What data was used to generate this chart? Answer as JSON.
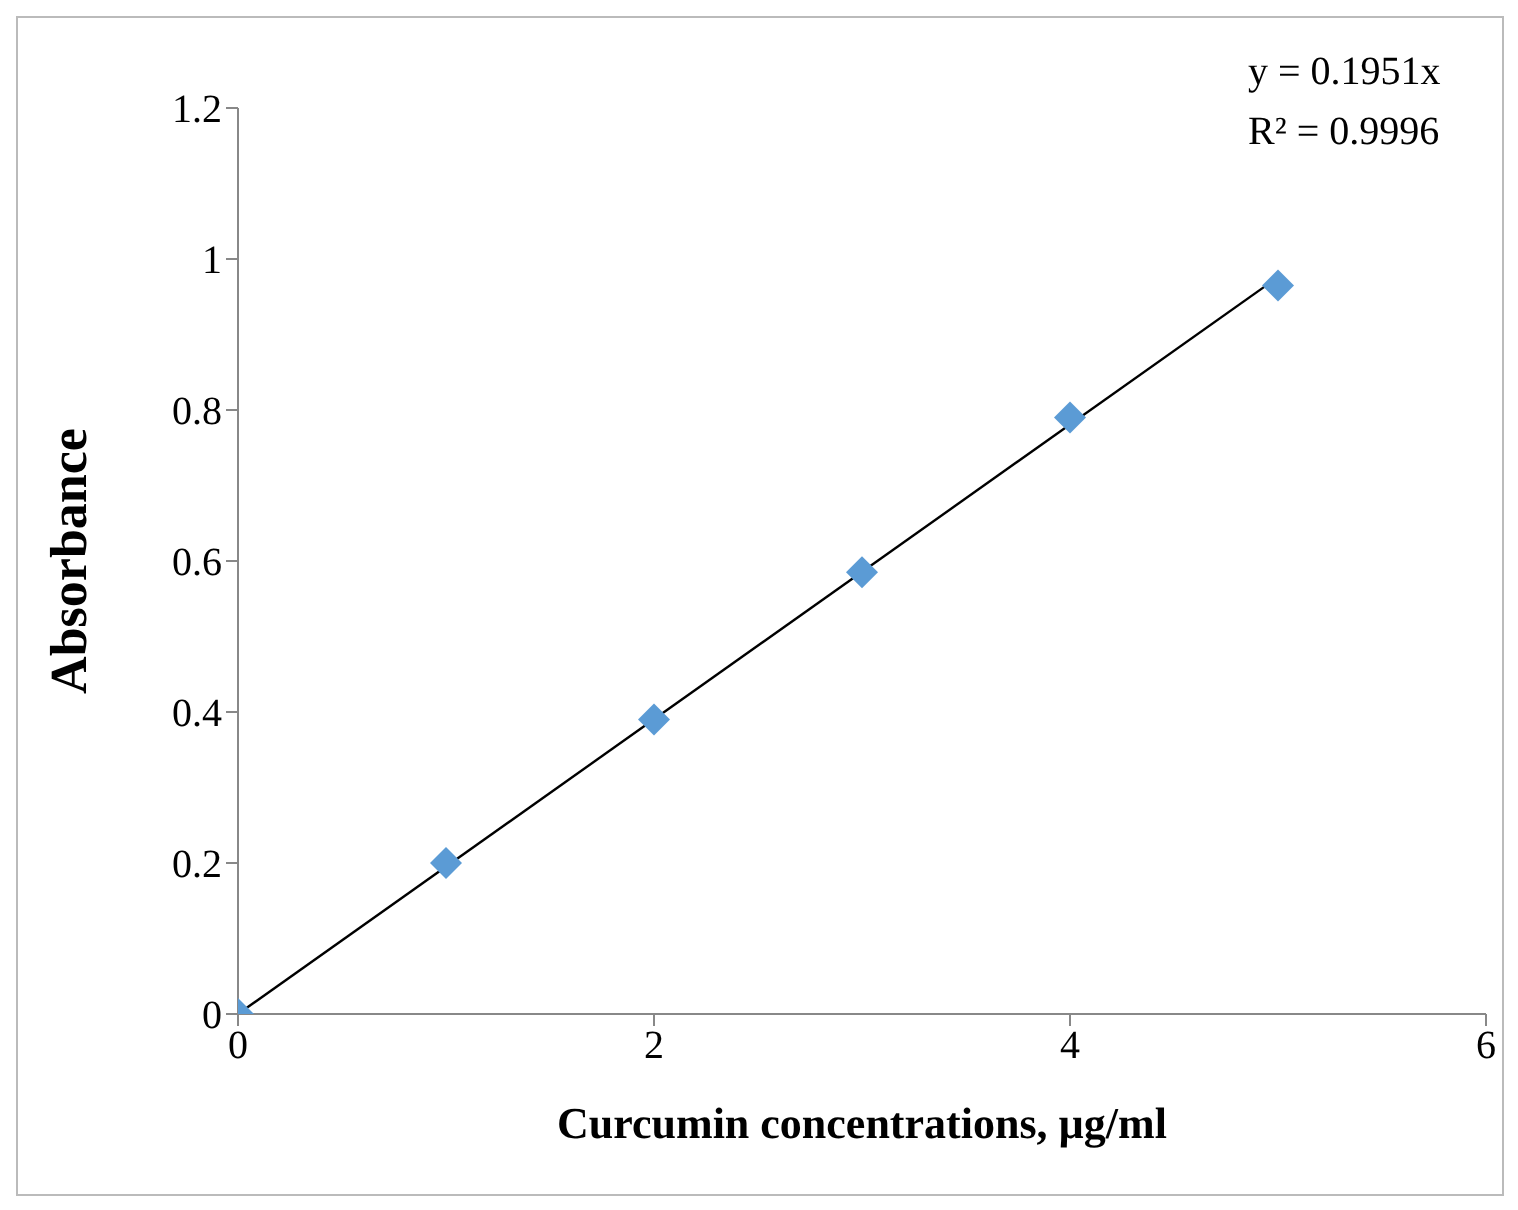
{
  "chart_data": {
    "type": "scatter",
    "xlabel": "Curcumin concentrations, µg/ml",
    "ylabel": "Absorbance",
    "series": [
      {
        "color": "#5b9bd5",
        "x": [
          0,
          1,
          2,
          3,
          4,
          5
        ],
        "values": [
          0,
          0.2,
          0.39,
          0.585,
          0.79,
          0.965
        ]
      },
      {
        "type": "line",
        "color": "#000000",
        "x": [
          0,
          5
        ],
        "values": [
          0,
          0.976
        ],
        "marker": "none"
      }
    ],
    "xlim": [
      0,
      6
    ],
    "xticks": [
      0,
      2,
      4,
      6
    ],
    "ylim": [
      0,
      1.2
    ],
    "yticks": [
      0,
      0.2,
      0.4,
      0.6,
      0.8,
      1,
      1.2
    ],
    "marker": "diamond",
    "line_style": "solid",
    "grid": false,
    "annotations": [
      "y = 0.1951x",
      "R² = 0.9996"
    ]
  }
}
